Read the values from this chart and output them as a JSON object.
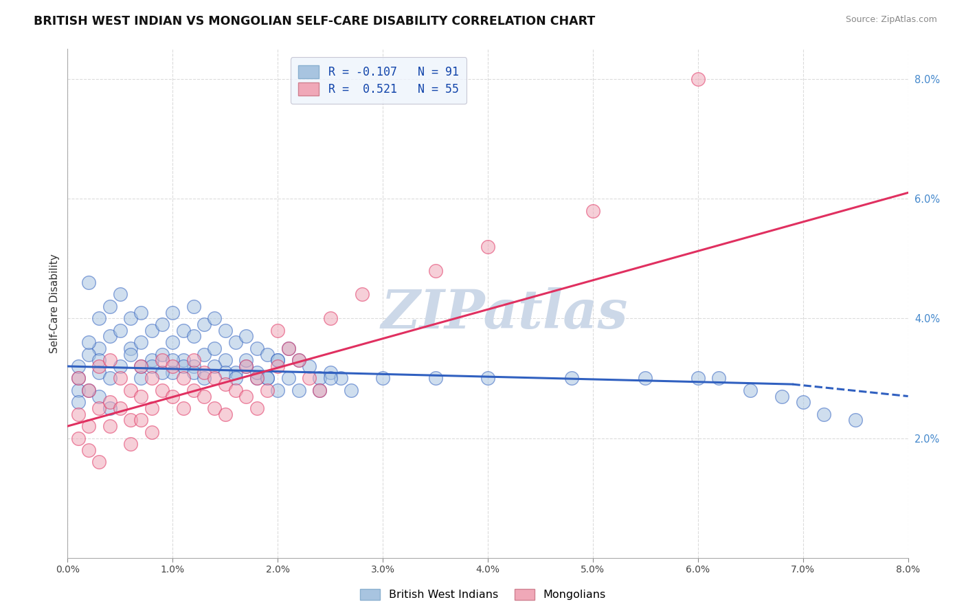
{
  "title": "BRITISH WEST INDIAN VS MONGOLIAN SELF-CARE DISABILITY CORRELATION CHART",
  "source": "Source: ZipAtlas.com",
  "ylabel": "Self-Care Disability",
  "x_min": 0.0,
  "x_max": 0.08,
  "y_min": 0.0,
  "y_max": 0.085,
  "x_ticks": [
    0.0,
    0.01,
    0.02,
    0.03,
    0.04,
    0.05,
    0.06,
    0.07,
    0.08
  ],
  "x_tick_labels": [
    "0.0%",
    "1.0%",
    "2.0%",
    "3.0%",
    "4.0%",
    "5.0%",
    "6.0%",
    "7.0%",
    "8.0%"
  ],
  "y_ticks": [
    0.02,
    0.04,
    0.06,
    0.08
  ],
  "y_tick_labels": [
    "2.0%",
    "4.0%",
    "6.0%",
    "8.0%"
  ],
  "blue_R": -0.107,
  "blue_N": 91,
  "pink_R": 0.521,
  "pink_N": 55,
  "blue_color": "#a8c4e0",
  "pink_color": "#f0a8b8",
  "blue_line_color": "#3060c0",
  "pink_line_color": "#e03060",
  "grid_color": "#cccccc",
  "watermark": "ZIPatlas",
  "watermark_color": "#ccd8e8",
  "legend_box_color": "#eef4fc",
  "blue_line_x_start": 0.0,
  "blue_line_x_end_solid": 0.069,
  "blue_line_x_end_dashed": 0.08,
  "blue_line_y_start": 0.032,
  "blue_line_y_end_solid": 0.029,
  "blue_line_y_end_dashed": 0.027,
  "pink_line_x_start": 0.0,
  "pink_line_x_end": 0.08,
  "pink_line_y_start": 0.022,
  "pink_line_y_end": 0.061,
  "fig_width": 14.06,
  "fig_height": 8.92,
  "blue_scatter_x": [
    0.002,
    0.003,
    0.003,
    0.004,
    0.004,
    0.005,
    0.005,
    0.006,
    0.006,
    0.007,
    0.007,
    0.007,
    0.008,
    0.008,
    0.009,
    0.009,
    0.01,
    0.01,
    0.01,
    0.011,
    0.011,
    0.012,
    0.012,
    0.012,
    0.013,
    0.013,
    0.014,
    0.014,
    0.015,
    0.015,
    0.016,
    0.016,
    0.017,
    0.017,
    0.018,
    0.018,
    0.019,
    0.019,
    0.02,
    0.02,
    0.021,
    0.021,
    0.022,
    0.022,
    0.023,
    0.024,
    0.024,
    0.025,
    0.026,
    0.027,
    0.001,
    0.001,
    0.001,
    0.002,
    0.002,
    0.003,
    0.003,
    0.004,
    0.005,
    0.006,
    0.007,
    0.008,
    0.009,
    0.01,
    0.011,
    0.012,
    0.013,
    0.014,
    0.015,
    0.016,
    0.017,
    0.018,
    0.019,
    0.02,
    0.025,
    0.03,
    0.035,
    0.04,
    0.048,
    0.055,
    0.06,
    0.062,
    0.065,
    0.068,
    0.07,
    0.072,
    0.075,
    0.001,
    0.002,
    0.003,
    0.004
  ],
  "blue_scatter_y": [
    0.046,
    0.04,
    0.035,
    0.042,
    0.037,
    0.044,
    0.038,
    0.04,
    0.035,
    0.041,
    0.036,
    0.032,
    0.038,
    0.033,
    0.039,
    0.034,
    0.041,
    0.036,
    0.031,
    0.038,
    0.033,
    0.042,
    0.037,
    0.032,
    0.039,
    0.034,
    0.04,
    0.035,
    0.038,
    0.033,
    0.036,
    0.031,
    0.037,
    0.032,
    0.035,
    0.03,
    0.034,
    0.03,
    0.033,
    0.028,
    0.035,
    0.03,
    0.033,
    0.028,
    0.032,
    0.03,
    0.028,
    0.031,
    0.03,
    0.028,
    0.03,
    0.028,
    0.032,
    0.034,
    0.036,
    0.033,
    0.031,
    0.03,
    0.032,
    0.034,
    0.03,
    0.032,
    0.031,
    0.033,
    0.032,
    0.031,
    0.03,
    0.032,
    0.031,
    0.03,
    0.033,
    0.031,
    0.03,
    0.033,
    0.03,
    0.03,
    0.03,
    0.03,
    0.03,
    0.03,
    0.03,
    0.03,
    0.028,
    0.027,
    0.026,
    0.024,
    0.023,
    0.026,
    0.028,
    0.027,
    0.025
  ],
  "pink_scatter_x": [
    0.001,
    0.001,
    0.002,
    0.002,
    0.003,
    0.003,
    0.004,
    0.004,
    0.005,
    0.006,
    0.006,
    0.007,
    0.007,
    0.008,
    0.008,
    0.009,
    0.009,
    0.01,
    0.01,
    0.011,
    0.011,
    0.012,
    0.012,
    0.013,
    0.013,
    0.014,
    0.014,
    0.015,
    0.015,
    0.016,
    0.017,
    0.017,
    0.018,
    0.018,
    0.019,
    0.02,
    0.021,
    0.022,
    0.023,
    0.024,
    0.001,
    0.002,
    0.003,
    0.004,
    0.005,
    0.006,
    0.007,
    0.008,
    0.02,
    0.025,
    0.028,
    0.035,
    0.04,
    0.05,
    0.06
  ],
  "pink_scatter_y": [
    0.03,
    0.024,
    0.028,
    0.022,
    0.032,
    0.025,
    0.033,
    0.026,
    0.03,
    0.028,
    0.023,
    0.032,
    0.027,
    0.03,
    0.025,
    0.033,
    0.028,
    0.032,
    0.027,
    0.03,
    0.025,
    0.033,
    0.028,
    0.031,
    0.027,
    0.03,
    0.025,
    0.029,
    0.024,
    0.028,
    0.032,
    0.027,
    0.03,
    0.025,
    0.028,
    0.032,
    0.035,
    0.033,
    0.03,
    0.028,
    0.02,
    0.018,
    0.016,
    0.022,
    0.025,
    0.019,
    0.023,
    0.021,
    0.038,
    0.04,
    0.044,
    0.048,
    0.052,
    0.058,
    0.08
  ]
}
